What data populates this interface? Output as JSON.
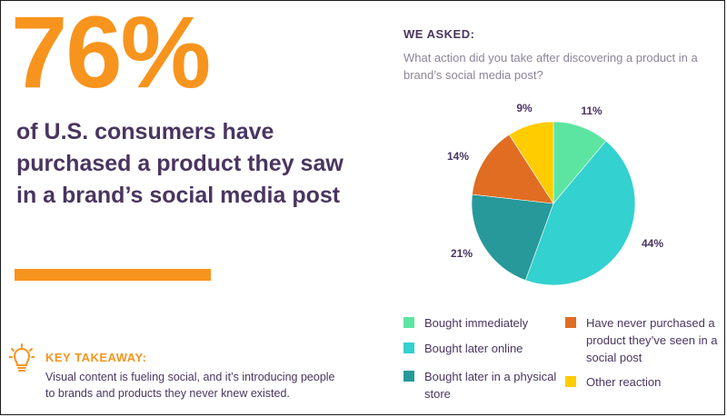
{
  "left": {
    "stat": "76%",
    "headline": "of U.S. consumers have purchased a product they saw in a brand’s social media post",
    "takeaway_title": "KEY TAKEAWAY:",
    "takeaway_body": "Visual content is fueling social, and it’s introducing people to brands and products they never knew existed."
  },
  "right": {
    "asked_title": "WE ASKED:",
    "question": "What action did you take after discovering a product in a brand’s social media post?"
  },
  "colors": {
    "accent": "#f7941d",
    "text": "#4a3560",
    "muted": "#8d8498"
  },
  "icons": {
    "takeaway": "lightbulb-icon"
  },
  "chart_data": {
    "type": "pie",
    "title": "",
    "slices": [
      {
        "label": "Bought immediately",
        "value": 11,
        "display": "11%",
        "color": "#5ce5a1"
      },
      {
        "label": "Bought later online",
        "value": 44,
        "display": "44%",
        "color": "#33d1cf"
      },
      {
        "label": "Bought later in a physical store",
        "value": 21,
        "display": "21%",
        "color": "#27999a"
      },
      {
        "label": "Have never purchased a product they’ve seen in a social post",
        "value": 14,
        "display": "14%",
        "color": "#e06d22"
      },
      {
        "label": "Other reaction",
        "value": 9,
        "display": "9%",
        "color": "#ffcc00"
      }
    ],
    "legend_position": "bottom"
  }
}
